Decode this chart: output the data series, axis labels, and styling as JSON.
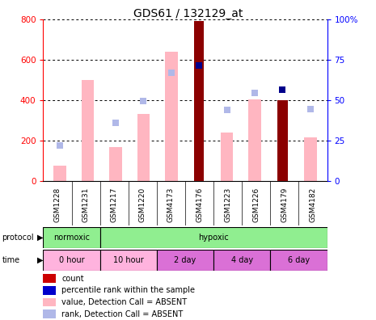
{
  "title": "GDS61 / 132129_at",
  "samples": [
    "GSM1228",
    "GSM1231",
    "GSM1217",
    "GSM1220",
    "GSM4173",
    "GSM4176",
    "GSM1223",
    "GSM1226",
    "GSM4179",
    "GSM4182"
  ],
  "value_absent": [
    75,
    500,
    165,
    330,
    640,
    null,
    240,
    405,
    null,
    215
  ],
  "rank_absent_left": [
    175,
    null,
    285,
    395,
    535,
    null,
    350,
    435,
    null,
    355
  ],
  "count": [
    null,
    null,
    null,
    null,
    null,
    790,
    null,
    null,
    400,
    null
  ],
  "percentile_left": [
    null,
    null,
    null,
    null,
    null,
    570,
    null,
    null,
    450,
    null
  ],
  "ylim_left": [
    0,
    800
  ],
  "ylim_right": [
    0,
    100
  ],
  "yticks_left": [
    0,
    200,
    400,
    600,
    800
  ],
  "yticks_right": [
    0,
    25,
    50,
    75,
    100
  ],
  "color_count": "#8b0000",
  "color_percentile": "#00008b",
  "color_value_absent": "#ffb6c1",
  "color_rank_absent": "#b0b8e8",
  "normoxic_color": "#90ee90",
  "hypoxic_color": "#90ee90",
  "time_box_colors": [
    "#ffb3de",
    "#ffb3de",
    "#da70d6",
    "#da70d6",
    "#da70d6"
  ],
  "time_labels": [
    "0 hour",
    "10 hour",
    "2 day",
    "4 day",
    "6 day"
  ],
  "legend_items": [
    {
      "label": "count",
      "color": "#cc0000"
    },
    {
      "label": "percentile rank within the sample",
      "color": "#0000cc"
    },
    {
      "label": "value, Detection Call = ABSENT",
      "color": "#ffb6c1"
    },
    {
      "label": "rank, Detection Call = ABSENT",
      "color": "#b0b8e8"
    }
  ]
}
